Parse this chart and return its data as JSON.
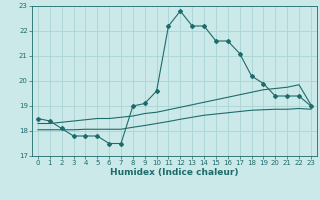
{
  "xlabel": "Humidex (Indice chaleur)",
  "background_color": "#cce9e9",
  "grid_color": "#aad4d4",
  "line_color": "#1e6b6b",
  "xlim": [
    -0.5,
    23.5
  ],
  "ylim": [
    17,
    23
  ],
  "yticks": [
    17,
    18,
    19,
    20,
    21,
    22,
    23
  ],
  "xticks": [
    0,
    1,
    2,
    3,
    4,
    5,
    6,
    7,
    8,
    9,
    10,
    11,
    12,
    13,
    14,
    15,
    16,
    17,
    18,
    19,
    20,
    21,
    22,
    23
  ],
  "main_line_x": [
    0,
    1,
    2,
    3,
    4,
    5,
    6,
    7,
    8,
    9,
    10,
    11,
    12,
    13,
    14,
    15,
    16,
    17,
    18,
    19,
    20,
    21,
    22,
    23
  ],
  "main_line_y": [
    18.5,
    18.4,
    18.1,
    17.8,
    17.8,
    17.8,
    17.5,
    17.5,
    19.0,
    19.1,
    19.6,
    22.2,
    22.8,
    22.2,
    22.2,
    21.6,
    21.6,
    21.1,
    20.2,
    19.9,
    19.4,
    19.4,
    19.4,
    19.0
  ],
  "line2_x": [
    0,
    1,
    2,
    3,
    4,
    5,
    6,
    7,
    8,
    9,
    10,
    11,
    12,
    13,
    14,
    15,
    16,
    17,
    18,
    19,
    20,
    21,
    22,
    23
  ],
  "line2_y": [
    18.3,
    18.3,
    18.35,
    18.4,
    18.45,
    18.5,
    18.5,
    18.55,
    18.6,
    18.7,
    18.75,
    18.85,
    18.95,
    19.05,
    19.15,
    19.25,
    19.35,
    19.45,
    19.55,
    19.65,
    19.7,
    19.75,
    19.85,
    19.05
  ],
  "line3_x": [
    0,
    1,
    2,
    3,
    4,
    5,
    6,
    7,
    8,
    9,
    10,
    11,
    12,
    13,
    14,
    15,
    16,
    17,
    18,
    19,
    20,
    21,
    22,
    23
  ],
  "line3_y": [
    18.05,
    18.05,
    18.05,
    18.05,
    18.07,
    18.07,
    18.07,
    18.07,
    18.15,
    18.22,
    18.3,
    18.38,
    18.47,
    18.55,
    18.63,
    18.68,
    18.73,
    18.78,
    18.83,
    18.85,
    18.87,
    18.87,
    18.9,
    18.87
  ]
}
